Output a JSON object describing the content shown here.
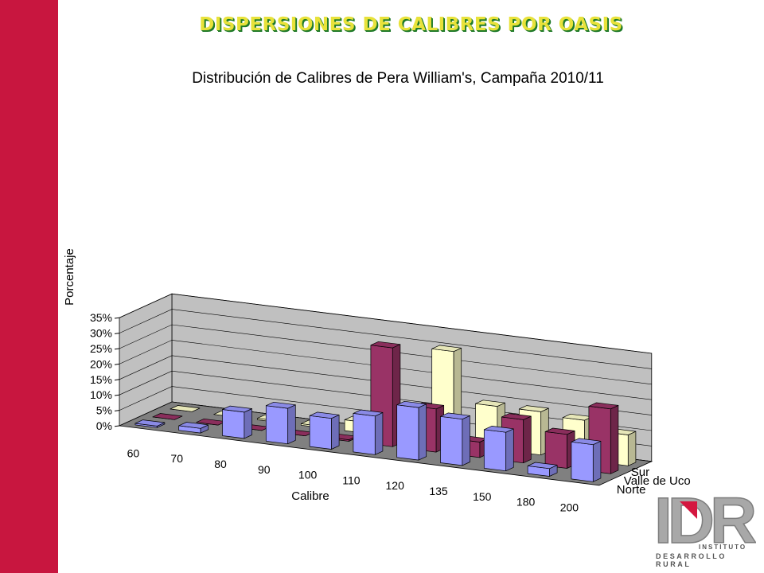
{
  "slide": {
    "title": "DISPERSIONES DE CALIBRES POR OASIS"
  },
  "logo": {
    "letters": "IDR",
    "line1": "INSTITUTO",
    "line2": "DESARROLLO RURAL"
  },
  "colors": {
    "sidebar": "#c8163f",
    "title_fill": "#e8e23a",
    "title_shadow": "#1f7a2a",
    "wall": "#c0c0c0",
    "floor": "#808080"
  },
  "chart_data": {
    "type": "bar",
    "subtype": "3d-column",
    "title": "Distribución de Calibres de Pera William's, Campaña 2010/11",
    "xlabel": "Calibre",
    "ylabel": "Porcentaje",
    "ylim": [
      0,
      35
    ],
    "yticks": [
      "0%",
      "5%",
      "10%",
      "15%",
      "20%",
      "25%",
      "30%",
      "35%"
    ],
    "categories": [
      "60",
      "70",
      "80",
      "90",
      "100",
      "110",
      "120",
      "135",
      "150",
      "180",
      "200"
    ],
    "series": [
      {
        "name": "Norte",
        "color": "#9999ff",
        "values": [
          0.5,
          1.5,
          8.5,
          11.5,
          10,
          12.5,
          17,
          15,
          12.5,
          2.5,
          12
        ]
      },
      {
        "name": "Valle de Uco",
        "color": "#993366",
        "values": [
          0,
          0,
          0,
          0,
          0.5,
          32,
          14,
          5,
          14,
          11,
          21
        ]
      },
      {
        "name": "Sur",
        "color": "#ffffcc",
        "values": [
          0,
          0,
          0.5,
          0.5,
          3.5,
          8,
          30,
          14,
          14,
          13,
          10
        ]
      }
    ],
    "legend": "depth-axis-right",
    "grid": true
  }
}
